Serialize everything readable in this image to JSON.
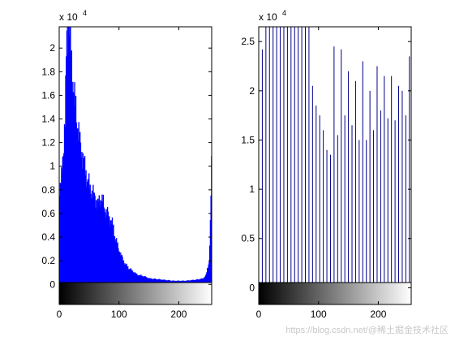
{
  "chart_data": [
    {
      "type": "bar",
      "exponent_label": "x 10",
      "exponent_power": "4",
      "bar_color": "#0000ff",
      "xlim": [
        0,
        255
      ],
      "ylim": [
        -0.17,
        2.18
      ],
      "xticks": [
        0,
        100,
        200
      ],
      "yticks": [
        0,
        0.2,
        0.4,
        0.6,
        0.8,
        1,
        1.2,
        1.4,
        1.6,
        1.8,
        2
      ],
      "ytick_labels": [
        "0",
        "0.2",
        "0.4",
        "0.6",
        "0.8",
        "1",
        "1.2",
        "1.4",
        "1.6",
        "1.8",
        "2"
      ],
      "colorbar": "grayscale 0-255",
      "envelope": [
        [
          0,
          0.75
        ],
        [
          3,
          0.9
        ],
        [
          5,
          1.1
        ],
        [
          7,
          1.2
        ],
        [
          9,
          1.35
        ],
        [
          10,
          1.6
        ],
        [
          12,
          2.2
        ],
        [
          15,
          2.2
        ],
        [
          18,
          2.1
        ],
        [
          20,
          1.9
        ],
        [
          22,
          1.75
        ],
        [
          25,
          1.55
        ],
        [
          28,
          1.45
        ],
        [
          30,
          1.35
        ],
        [
          33,
          1.22
        ],
        [
          36,
          1.15
        ],
        [
          40,
          1.05
        ],
        [
          45,
          0.92
        ],
        [
          50,
          0.82
        ],
        [
          55,
          0.78
        ],
        [
          60,
          0.72
        ],
        [
          65,
          0.68
        ],
        [
          70,
          0.74
        ],
        [
          75,
          0.64
        ],
        [
          80,
          0.6
        ],
        [
          84,
          0.55
        ],
        [
          88,
          0.52
        ],
        [
          92,
          0.42
        ],
        [
          96,
          0.34
        ],
        [
          100,
          0.28
        ],
        [
          105,
          0.22
        ],
        [
          110,
          0.17
        ],
        [
          115,
          0.14
        ],
        [
          120,
          0.12
        ],
        [
          125,
          0.1
        ],
        [
          130,
          0.08
        ],
        [
          140,
          0.07
        ],
        [
          150,
          0.05
        ],
        [
          160,
          0.045
        ],
        [
          170,
          0.04
        ],
        [
          180,
          0.035
        ],
        [
          190,
          0.03
        ],
        [
          200,
          0.03
        ],
        [
          210,
          0.03
        ],
        [
          220,
          0.035
        ],
        [
          230,
          0.04
        ],
        [
          240,
          0.05
        ],
        [
          245,
          0.08
        ],
        [
          250,
          0.2
        ],
        [
          252,
          0.5
        ],
        [
          254,
          1.0
        ],
        [
          255,
          1.35
        ]
      ]
    },
    {
      "type": "bar",
      "exponent_label": "x 10",
      "exponent_power": "4",
      "bar_color": "#00008b",
      "xlim": [
        0,
        255
      ],
      "ylim": [
        -0.17,
        2.65
      ],
      "xticks": [
        0,
        100,
        200
      ],
      "yticks": [
        0,
        0.5,
        1,
        1.5,
        2,
        2.5
      ],
      "ytick_labels": [
        "0",
        "0.5",
        "1",
        "1.5",
        "2",
        "2.5"
      ],
      "colorbar": "grayscale 0-255",
      "spikes": [
        [
          0,
          1.95
        ],
        [
          6,
          2.42
        ],
        [
          12,
          2.65
        ],
        [
          18,
          2.65
        ],
        [
          24,
          2.65
        ],
        [
          30,
          2.65
        ],
        [
          36,
          2.65
        ],
        [
          42,
          2.65
        ],
        [
          48,
          2.65
        ],
        [
          54,
          2.65
        ],
        [
          60,
          2.65
        ],
        [
          66,
          2.65
        ],
        [
          72,
          2.65
        ],
        [
          78,
          2.65
        ],
        [
          84,
          2.65
        ],
        [
          90,
          2.05
        ],
        [
          96,
          1.85
        ],
        [
          102,
          1.75
        ],
        [
          108,
          1.6
        ],
        [
          114,
          1.4
        ],
        [
          120,
          1.35
        ],
        [
          126,
          2.45
        ],
        [
          132,
          1.55
        ],
        [
          138,
          2.42
        ],
        [
          144,
          1.75
        ],
        [
          150,
          2.2
        ],
        [
          156,
          1.65
        ],
        [
          162,
          2.1
        ],
        [
          168,
          1.5
        ],
        [
          174,
          2.3
        ],
        [
          180,
          1.5
        ],
        [
          186,
          2.0
        ],
        [
          192,
          1.6
        ],
        [
          198,
          2.25
        ],
        [
          204,
          1.8
        ],
        [
          210,
          2.15
        ],
        [
          216,
          1.72
        ],
        [
          222,
          2.15
        ],
        [
          228,
          1.7
        ],
        [
          234,
          2.05
        ],
        [
          240,
          2.0
        ],
        [
          246,
          1.75
        ],
        [
          252,
          2.35
        ]
      ]
    }
  ],
  "watermark": "https://blog.csdn.net/@稀土掘金技术社区"
}
